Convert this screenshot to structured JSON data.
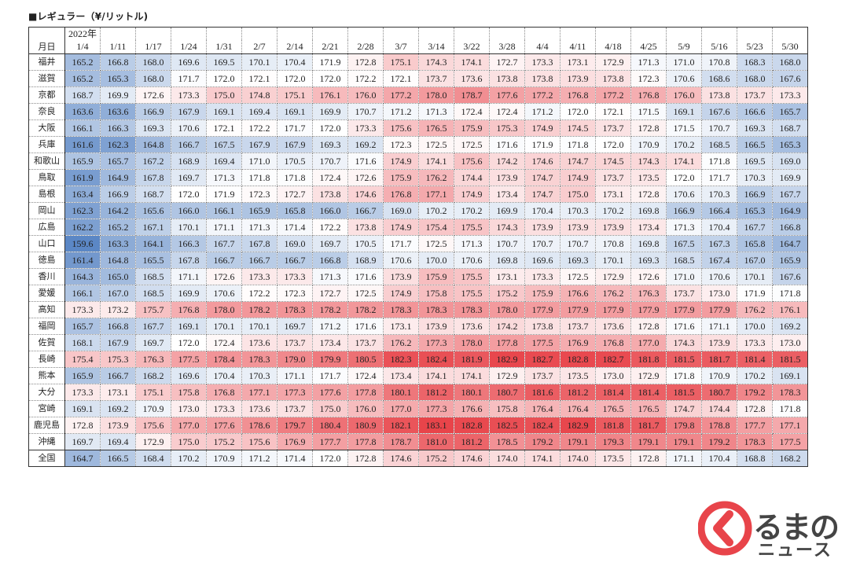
{
  "title": "■レギュラー（¥/リットル)",
  "year_label": "2022年",
  "month_day_label": "月日",
  "dates": [
    "1/4",
    "1/11",
    "1/17",
    "1/24",
    "1/31",
    "2/7",
    "2/14",
    "2/21",
    "2/28",
    "3/7",
    "3/14",
    "3/22",
    "3/28",
    "4/4",
    "4/11",
    "4/18",
    "4/25",
    "5/9",
    "5/16",
    "5/23",
    "5/30"
  ],
  "rows": [
    {
      "pref": "福井",
      "values": [
        165.2,
        166.8,
        168.0,
        169.6,
        169.5,
        170.1,
        170.4,
        171.9,
        172.8,
        175.1,
        174.3,
        174.1,
        172.7,
        173.3,
        173.1,
        172.9,
        171.3,
        171.0,
        170.8,
        168.3,
        168.0
      ]
    },
    {
      "pref": "滋賀",
      "values": [
        165.2,
        165.3,
        168.0,
        171.7,
        172.0,
        172.1,
        172.0,
        172.0,
        172.2,
        172.1,
        173.7,
        173.6,
        173.8,
        173.8,
        173.9,
        173.8,
        172.3,
        170.6,
        168.6,
        168.0,
        167.6
      ]
    },
    {
      "pref": "京都",
      "values": [
        168.7,
        169.9,
        172.6,
        173.3,
        175.0,
        174.8,
        175.1,
        176.1,
        176.0,
        177.2,
        178.0,
        178.7,
        177.6,
        177.2,
        176.8,
        177.2,
        176.8,
        176.0,
        173.8,
        173.7,
        173.3
      ]
    },
    {
      "pref": "奈良",
      "values": [
        163.6,
        163.6,
        166.9,
        167.9,
        169.1,
        169.4,
        169.1,
        169.9,
        170.7,
        171.2,
        171.3,
        172.4,
        172.4,
        171.2,
        172.0,
        172.1,
        171.5,
        169.1,
        167.6,
        166.6,
        165.7
      ]
    },
    {
      "pref": "大阪",
      "values": [
        166.1,
        166.3,
        169.3,
        170.6,
        172.1,
        172.2,
        171.7,
        172.0,
        173.3,
        175.6,
        176.5,
        175.9,
        175.3,
        174.9,
        174.5,
        173.7,
        172.8,
        171.5,
        170.7,
        169.3,
        168.7
      ]
    },
    {
      "pref": "兵庫",
      "values": [
        161.6,
        162.3,
        164.8,
        166.7,
        167.5,
        167.9,
        167.9,
        169.3,
        169.2,
        172.3,
        172.5,
        172.5,
        171.6,
        171.9,
        171.8,
        172.0,
        170.9,
        170.2,
        168.5,
        166.5,
        165.3
      ]
    },
    {
      "pref": "和歌山",
      "values": [
        165.9,
        165.7,
        167.2,
        168.9,
        169.4,
        171.0,
        170.5,
        170.7,
        171.6,
        174.9,
        174.1,
        175.6,
        174.2,
        174.6,
        174.7,
        174.5,
        174.3,
        174.1,
        171.8,
        169.5,
        169.0
      ]
    },
    {
      "pref": "鳥取",
      "values": [
        161.9,
        164.9,
        167.8,
        169.7,
        171.3,
        171.8,
        171.8,
        172.4,
        172.6,
        175.9,
        176.2,
        174.4,
        173.9,
        174.7,
        174.9,
        173.7,
        173.5,
        172.0,
        171.7,
        170.3,
        169.9
      ]
    },
    {
      "pref": "島根",
      "values": [
        163.4,
        166.9,
        168.7,
        172.0,
        171.9,
        172.3,
        172.7,
        173.8,
        174.6,
        176.8,
        177.1,
        174.9,
        173.4,
        174.7,
        175.0,
        173.1,
        172.8,
        170.6,
        170.3,
        166.9,
        167.7
      ]
    },
    {
      "pref": "岡山",
      "values": [
        162.3,
        164.2,
        165.6,
        166.0,
        166.1,
        165.9,
        165.8,
        166.0,
        166.7,
        169.0,
        170.2,
        170.2,
        169.9,
        170.4,
        170.3,
        170.2,
        169.8,
        166.9,
        166.4,
        165.3,
        164.9
      ]
    },
    {
      "pref": "広島",
      "values": [
        162.2,
        165.2,
        167.1,
        170.1,
        171.1,
        171.3,
        171.4,
        172.2,
        173.8,
        174.9,
        175.4,
        175.5,
        174.3,
        173.9,
        173.9,
        173.9,
        173.4,
        171.3,
        170.4,
        167.7,
        166.8
      ]
    },
    {
      "pref": "山口",
      "values": [
        159.6,
        163.3,
        164.1,
        166.3,
        167.7,
        167.8,
        169.0,
        169.7,
        170.5,
        171.7,
        172.5,
        171.3,
        170.7,
        170.7,
        170.7,
        170.8,
        169.8,
        167.5,
        167.3,
        165.8,
        164.7
      ]
    },
    {
      "pref": "徳島",
      "values": [
        161.4,
        164.8,
        165.5,
        167.8,
        166.7,
        166.7,
        166.7,
        166.8,
        168.9,
        170.6,
        170.0,
        170.6,
        169.8,
        169.6,
        169.3,
        170.1,
        169.3,
        168.5,
        167.4,
        167.0,
        165.9
      ]
    },
    {
      "pref": "香川",
      "values": [
        164.3,
        165.0,
        168.5,
        171.1,
        172.6,
        173.3,
        173.3,
        171.3,
        171.6,
        173.9,
        175.9,
        175.5,
        173.1,
        173.3,
        172.5,
        172.9,
        172.6,
        171.0,
        170.6,
        170.1,
        167.6
      ]
    },
    {
      "pref": "愛媛",
      "values": [
        166.1,
        167.0,
        168.5,
        169.9,
        170.6,
        172.2,
        172.3,
        172.7,
        172.5,
        174.9,
        175.8,
        175.5,
        175.2,
        175.9,
        176.6,
        176.2,
        176.3,
        173.7,
        173.0,
        171.9,
        171.8
      ]
    },
    {
      "pref": "高知",
      "values": [
        173.3,
        173.2,
        175.7,
        176.8,
        178.0,
        178.2,
        178.3,
        178.2,
        178.2,
        178.3,
        178.3,
        178.3,
        178.0,
        177.9,
        177.9,
        177.9,
        177.9,
        177.9,
        177.9,
        176.2,
        176.1
      ]
    },
    {
      "pref": "福岡",
      "values": [
        165.7,
        166.8,
        167.7,
        169.1,
        170.1,
        170.1,
        169.7,
        171.2,
        171.6,
        173.1,
        173.9,
        173.6,
        174.2,
        173.8,
        173.7,
        173.6,
        172.8,
        171.6,
        171.1,
        170.0,
        169.2
      ]
    },
    {
      "pref": "佐賀",
      "values": [
        168.1,
        167.9,
        169.7,
        172.0,
        172.4,
        173.6,
        173.7,
        173.4,
        173.7,
        176.2,
        177.3,
        178.0,
        177.8,
        177.5,
        176.9,
        176.8,
        177.0,
        174.3,
        173.9,
        173.3,
        173.0
      ]
    },
    {
      "pref": "長崎",
      "values": [
        175.4,
        175.3,
        176.3,
        177.5,
        178.4,
        178.3,
        179.0,
        179.9,
        180.5,
        182.3,
        182.4,
        181.9,
        182.9,
        182.7,
        182.8,
        182.7,
        181.8,
        181.5,
        181.7,
        181.4,
        181.5
      ]
    },
    {
      "pref": "熊本",
      "values": [
        165.9,
        166.7,
        168.2,
        169.6,
        170.4,
        170.3,
        171.1,
        171.7,
        172.4,
        173.4,
        174.1,
        174.1,
        172.9,
        173.7,
        173.5,
        173.0,
        172.9,
        171.8,
        170.9,
        170.2,
        169.1
      ]
    },
    {
      "pref": "大分",
      "values": [
        173.3,
        173.1,
        175.1,
        175.8,
        176.8,
        177.1,
        177.3,
        177.6,
        177.8,
        180.1,
        181.2,
        180.1,
        180.7,
        181.6,
        181.2,
        181.4,
        181.4,
        181.5,
        180.7,
        179.2,
        178.3
      ]
    },
    {
      "pref": "宮崎",
      "values": [
        169.1,
        169.2,
        170.9,
        173.0,
        173.3,
        173.6,
        173.7,
        175.0,
        176.0,
        177.0,
        177.3,
        176.6,
        175.8,
        176.4,
        176.4,
        176.5,
        176.5,
        174.7,
        174.4,
        172.8,
        171.8
      ]
    },
    {
      "pref": "鹿児島",
      "values": [
        172.8,
        173.9,
        175.6,
        177.0,
        177.6,
        178.6,
        179.7,
        180.4,
        180.9,
        182.1,
        183.1,
        182.8,
        182.5,
        182.4,
        182.9,
        181.8,
        181.7,
        179.8,
        178.8,
        177.7,
        177.1
      ]
    },
    {
      "pref": "沖縄",
      "values": [
        169.7,
        169.4,
        172.9,
        175.0,
        175.2,
        175.6,
        176.9,
        177.7,
        177.8,
        178.7,
        181.0,
        181.2,
        178.5,
        179.2,
        179.1,
        179.3,
        179.1,
        179.1,
        179.2,
        178.3,
        177.5
      ]
    },
    {
      "pref": "全国",
      "values": [
        164.7,
        166.5,
        168.4,
        170.2,
        170.9,
        171.2,
        171.4,
        172.0,
        172.8,
        174.6,
        175.2,
        174.6,
        174.0,
        174.1,
        174.0,
        173.5,
        172.8,
        171.1,
        170.4,
        168.8,
        168.2
      ]
    }
  ],
  "heatmap_colors": {
    "low": "#5b87c5",
    "mid": "#ffffff",
    "high": "#e8444a"
  },
  "logo": {
    "line1": "るまの",
    "line2": "ニュース",
    "mark_color": "#e8444a"
  }
}
